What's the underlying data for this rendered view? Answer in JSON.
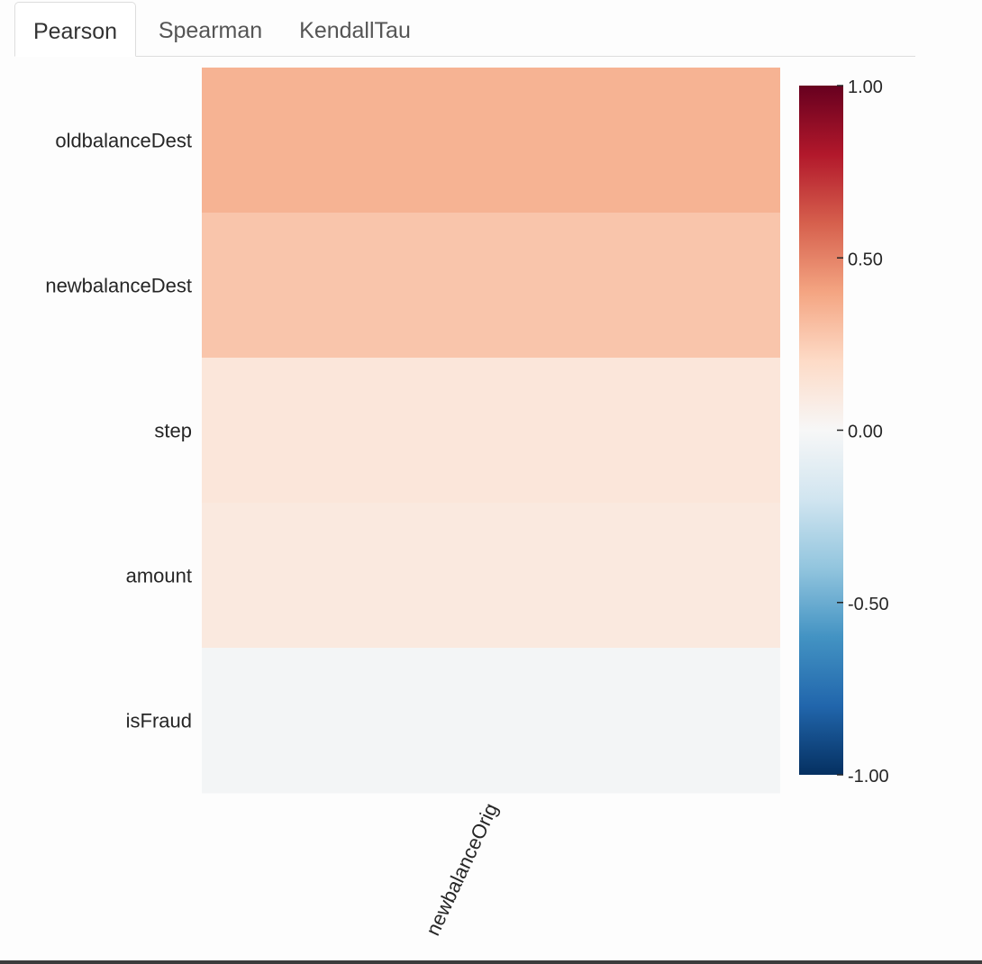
{
  "tabs": [
    {
      "label": "Pearson",
      "active": true
    },
    {
      "label": "Spearman",
      "active": false
    },
    {
      "label": "KendallTau",
      "active": false
    }
  ],
  "chart_data": {
    "type": "heatmap",
    "title": "",
    "x_categories": [
      "newbalanceOrig"
    ],
    "y_categories": [
      "oldbalanceDest",
      "newbalanceDest",
      "step",
      "amount",
      "isFraud"
    ],
    "values": [
      [
        0.35
      ],
      [
        0.28
      ],
      [
        0.12
      ],
      [
        0.1
      ],
      [
        -0.02
      ]
    ],
    "colorbar": {
      "range": [
        -1.0,
        1.0
      ],
      "ticks": [
        1.0,
        0.5,
        0.0,
        -0.5,
        -1.0
      ],
      "tick_labels": [
        "1.00",
        "0.50",
        "0.00",
        "-0.50",
        "-1.00"
      ],
      "colormap": "RdBu_r"
    }
  }
}
